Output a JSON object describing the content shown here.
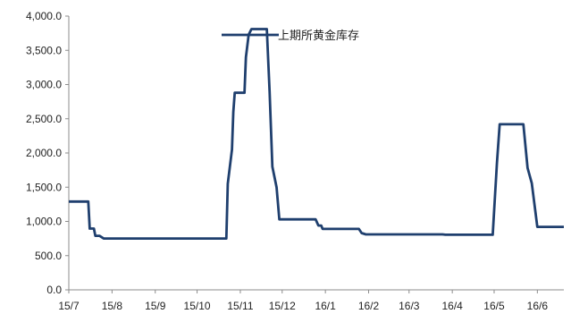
{
  "chart_data": {
    "type": "line",
    "title": "",
    "xlabel": "",
    "ylabel": "",
    "ylim": [
      0,
      4000
    ],
    "yticks": [
      "0.0",
      "500.0",
      "1,000.0",
      "1,500.0",
      "2,000.0",
      "2,500.0",
      "3,000.0",
      "3,500.0",
      "4,000.0"
    ],
    "ytick_values": [
      0,
      500,
      1000,
      1500,
      2000,
      2500,
      3000,
      3500,
      4000
    ],
    "xlim": [
      "2015-07-01",
      "2016-06-20"
    ],
    "xticks": [
      {
        "label": "15/7",
        "date": "2015-07-01"
      },
      {
        "label": "15/8",
        "date": "2015-08-01"
      },
      {
        "label": "15/9",
        "date": "2015-09-01"
      },
      {
        "label": "15/10",
        "date": "2015-10-01"
      },
      {
        "label": "15/11",
        "date": "2015-11-01"
      },
      {
        "label": "15/12",
        "date": "2015-12-01"
      },
      {
        "label": "16/1",
        "date": "2016-01-01"
      },
      {
        "label": "16/2",
        "date": "2016-02-01"
      },
      {
        "label": "16/3",
        "date": "2016-03-01"
      },
      {
        "label": "16/4",
        "date": "2016-04-01"
      },
      {
        "label": "16/5",
        "date": "2016-05-01"
      },
      {
        "label": "16/6",
        "date": "2016-06-01"
      }
    ],
    "legend_position": "top",
    "grid": false,
    "series": [
      {
        "name": "上期所黄金库存",
        "color": "#1f3f6e",
        "points": [
          [
            "2015-07-01",
            1290
          ],
          [
            "2015-07-15",
            1290
          ],
          [
            "2015-07-16",
            895
          ],
          [
            "2015-07-19",
            895
          ],
          [
            "2015-07-20",
            790
          ],
          [
            "2015-07-23",
            790
          ],
          [
            "2015-07-26",
            750
          ],
          [
            "2015-10-22",
            750
          ],
          [
            "2015-10-23",
            1550
          ],
          [
            "2015-10-26",
            2050
          ],
          [
            "2015-10-27",
            2600
          ],
          [
            "2015-10-28",
            2880
          ],
          [
            "2015-11-04",
            2880
          ],
          [
            "2015-11-05",
            3400
          ],
          [
            "2015-11-07",
            3730
          ],
          [
            "2015-11-09",
            3810
          ],
          [
            "2015-11-20",
            3810
          ],
          [
            "2015-11-22",
            2900
          ],
          [
            "2015-11-24",
            1800
          ],
          [
            "2015-11-27",
            1500
          ],
          [
            "2015-11-29",
            1030
          ],
          [
            "2015-12-25",
            1030
          ],
          [
            "2015-12-27",
            940
          ],
          [
            "2015-12-29",
            940
          ],
          [
            "2015-12-30",
            890
          ],
          [
            "2016-01-25",
            890
          ],
          [
            "2016-01-27",
            830
          ],
          [
            "2016-01-30",
            810
          ],
          [
            "2016-03-25",
            810
          ],
          [
            "2016-03-27",
            805
          ],
          [
            "2016-04-30",
            805
          ],
          [
            "2016-05-03",
            1850
          ],
          [
            "2016-05-05",
            2420
          ],
          [
            "2016-05-22",
            2420
          ],
          [
            "2016-05-25",
            1780
          ],
          [
            "2016-05-28",
            1560
          ],
          [
            "2016-06-01",
            920
          ],
          [
            "2016-06-20",
            920
          ]
        ]
      }
    ]
  }
}
